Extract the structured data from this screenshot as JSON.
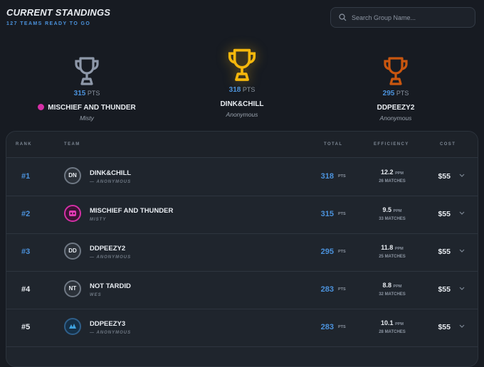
{
  "header": {
    "title": "CURRENT STANDINGS",
    "subtitle": "127 TEAMS READY TO GO",
    "search_placeholder": "Search Group Name..."
  },
  "units": {
    "points": "PTS",
    "efficiency": "PPM",
    "matches": "MATCHES"
  },
  "podium": [
    {
      "place": "silver",
      "points": 315,
      "team": "MISCHIEF AND THUNDER",
      "owner": "Misty"
    },
    {
      "place": "gold",
      "points": 318,
      "team": "DINK&CHILL",
      "owner": "Anonymous"
    },
    {
      "place": "bronze",
      "points": 295,
      "team": "DDPEEZY2",
      "owner": "Anonymous"
    }
  ],
  "table": {
    "columns": [
      "RANK",
      "TEAM",
      "TOTAL",
      "EFFICIENCY",
      "COST"
    ],
    "rows": [
      {
        "rank": "#1",
        "initials": "DN",
        "team": "DINK&CHILL",
        "owner": "— ANONYMOUS",
        "total": 318,
        "efficiency": 12.2,
        "matches": 26,
        "cost": "$55"
      },
      {
        "rank": "#2",
        "team": "MISCHIEF AND THUNDER",
        "owner": "MISTY",
        "total": 315,
        "efficiency": 9.5,
        "matches": 33,
        "cost": "$55"
      },
      {
        "rank": "#3",
        "initials": "DD",
        "team": "DDPEEZY2",
        "owner": "— ANONYMOUS",
        "total": 295,
        "efficiency": 11.8,
        "matches": 25,
        "cost": "$55"
      },
      {
        "rank": "#4",
        "initials": "NT",
        "team": "NOT TARDID",
        "owner": "WES",
        "total": 283,
        "efficiency": 8.8,
        "matches": 32,
        "cost": "$55"
      },
      {
        "rank": "#5",
        "team": "DDPEEZY3",
        "owner": "— ANONYMOUS",
        "total": 283,
        "efficiency": 10.1,
        "matches": 28,
        "cost": "$55"
      }
    ]
  }
}
